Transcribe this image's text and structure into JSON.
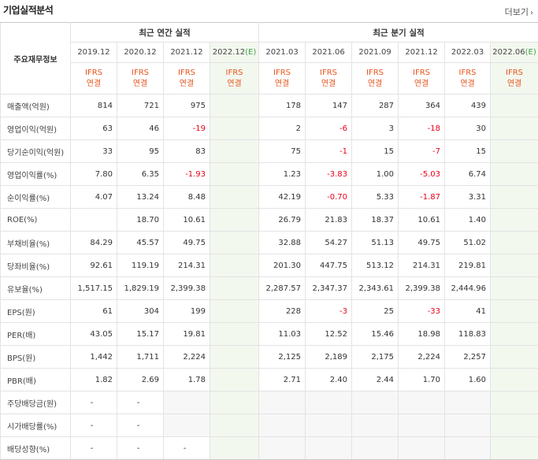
{
  "title": "기업실적분석",
  "more_label": "더보기",
  "table": {
    "label_header": "주요재무정보",
    "annual_header": "최근 연간 실적",
    "quarter_header": "최근 분기 실적",
    "annual_periods": [
      "2019.12",
      "2020.12",
      "2021.12",
      "2022.12"
    ],
    "annual_estimate_mark": "(E)",
    "quarter_periods": [
      "2021.03",
      "2021.06",
      "2021.09",
      "2021.12",
      "2022.03",
      "2022.06"
    ],
    "quarter_estimate_mark": "(E)",
    "ifrs_top": "IFRS",
    "ifrs_bottom": "연결",
    "rows": [
      {
        "label": "매출액(억원)",
        "values": [
          "814",
          "721",
          "975",
          "",
          "178",
          "147",
          "287",
          "364",
          "439",
          ""
        ]
      },
      {
        "label": "영업이익(억원)",
        "values": [
          "63",
          "46",
          "-19",
          "",
          "2",
          "-6",
          "3",
          "-18",
          "30",
          ""
        ]
      },
      {
        "label": "당기순이익(억원)",
        "values": [
          "33",
          "95",
          "83",
          "",
          "75",
          "-1",
          "15",
          "-7",
          "15",
          ""
        ]
      },
      {
        "label": "영업이익률(%)",
        "values": [
          "7.80",
          "6.35",
          "-1.93",
          "",
          "1.23",
          "-3.83",
          "1.00",
          "-5.03",
          "6.74",
          ""
        ]
      },
      {
        "label": "순이익률(%)",
        "values": [
          "4.07",
          "13.24",
          "8.48",
          "",
          "42.19",
          "-0.70",
          "5.33",
          "-1.87",
          "3.31",
          ""
        ]
      },
      {
        "label": "ROE(%)",
        "values": [
          "",
          "18.70",
          "10.61",
          "",
          "26.79",
          "21.83",
          "18.37",
          "10.61",
          "1.40",
          ""
        ]
      },
      {
        "label": "부채비율(%)",
        "values": [
          "84.29",
          "45.57",
          "49.75",
          "",
          "32.88",
          "54.27",
          "51.13",
          "49.75",
          "51.02",
          ""
        ]
      },
      {
        "label": "당좌비율(%)",
        "values": [
          "92.61",
          "119.19",
          "214.31",
          "",
          "201.30",
          "447.75",
          "513.12",
          "214.31",
          "219.81",
          ""
        ]
      },
      {
        "label": "유보율(%)",
        "values": [
          "1,517.15",
          "1,829.19",
          "2,399.38",
          "",
          "2,287.57",
          "2,347.37",
          "2,343.61",
          "2,399.38",
          "2,444.96",
          ""
        ]
      },
      {
        "label": "EPS(원)",
        "values": [
          "61",
          "304",
          "199",
          "",
          "228",
          "-3",
          "25",
          "-33",
          "41",
          ""
        ]
      },
      {
        "label": "PER(배)",
        "values": [
          "43.05",
          "15.17",
          "19.81",
          "",
          "11.03",
          "12.52",
          "15.46",
          "18.98",
          "118.83",
          ""
        ]
      },
      {
        "label": "BPS(원)",
        "values": [
          "1,442",
          "1,711",
          "2,224",
          "",
          "2,125",
          "2,189",
          "2,175",
          "2,224",
          "2,257",
          ""
        ]
      },
      {
        "label": "PBR(배)",
        "values": [
          "1.82",
          "2.69",
          "1.78",
          "",
          "2.71",
          "2.40",
          "2.44",
          "1.70",
          "1.60",
          ""
        ]
      },
      {
        "label": "주당배당금(원)",
        "values": [
          "-",
          "-",
          "",
          "",
          "",
          "",
          "",
          "",
          "",
          ""
        ]
      },
      {
        "label": "시가배당률(%)",
        "values": [
          "-",
          "-",
          "",
          "",
          "",
          "",
          "",
          "",
          "",
          ""
        ]
      },
      {
        "label": "배당성향(%)",
        "values": [
          "-",
          "-",
          "-",
          "",
          "",
          "",
          "",
          "",
          "",
          ""
        ]
      }
    ]
  }
}
